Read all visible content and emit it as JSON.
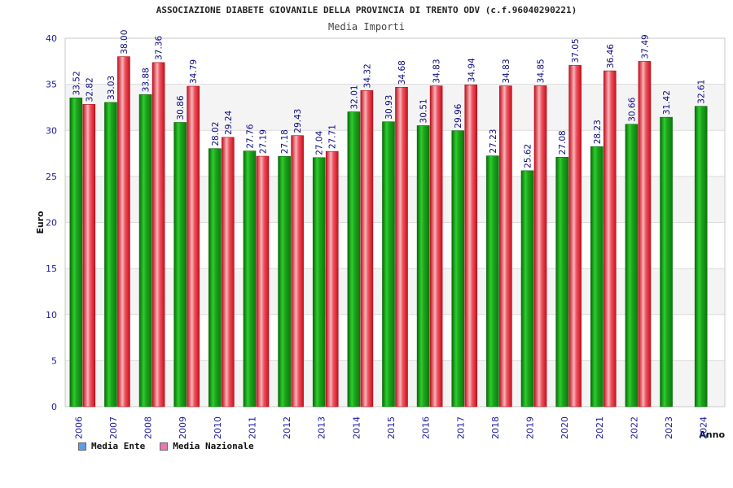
{
  "chart_data": {
    "type": "bar",
    "title": "ASSOCIAZIONE DIABETE GIOVANILE DELLA PROVINCIA DI TRENTO ODV (c.f.96040290221)",
    "subtitle": "Media Importi",
    "xlabel": "Anno",
    "ylabel": "Euro",
    "ylim": [
      0,
      40
    ],
    "yticks": [
      "0",
      "5",
      "10",
      "15",
      "20",
      "25",
      "30",
      "35",
      "40"
    ],
    "grid": true,
    "legend_position": "bottom-left",
    "categories": [
      "2006",
      "2007",
      "2008",
      "2009",
      "2010",
      "2011",
      "2012",
      "2013",
      "2014",
      "2015",
      "2016",
      "2017",
      "2018",
      "2019",
      "2020",
      "2021",
      "2022",
      "2023",
      "2024"
    ],
    "series": [
      {
        "name": "Media Ente",
        "color": "#1fa51f",
        "legend_color": "#5aa0e6",
        "values": [
          33.52,
          33.03,
          33.88,
          30.86,
          28.02,
          27.76,
          27.18,
          27.04,
          32.01,
          30.93,
          30.51,
          29.96,
          27.23,
          25.62,
          27.08,
          28.23,
          30.66,
          31.42,
          32.61
        ],
        "labels": [
          "33.52",
          "33.03",
          "33.88",
          "30.86",
          "28.02",
          "27.76",
          "27.18",
          "27.04",
          "32.01",
          "30.93",
          "30.51",
          "29.96",
          "27.23",
          "25.62",
          "27.08",
          "28.23",
          "30.66",
          "31.42",
          "32.61"
        ]
      },
      {
        "name": "Media Nazionale",
        "color": "#e8202e",
        "legend_color": "#e57bb0",
        "values": [
          32.82,
          38.0,
          37.36,
          34.79,
          29.24,
          27.19,
          29.43,
          27.71,
          34.32,
          34.68,
          34.83,
          34.94,
          34.83,
          34.85,
          37.05,
          36.46,
          37.49,
          null,
          null
        ],
        "labels": [
          "32.82",
          "38.00",
          "37.36",
          "34.79",
          "29.24",
          "27.19",
          "29.43",
          "27.71",
          "34.32",
          "34.68",
          "34.83",
          "34.94",
          "34.83",
          "34.85",
          "37.05",
          "36.46",
          "37.49",
          "",
          ""
        ]
      }
    ]
  }
}
